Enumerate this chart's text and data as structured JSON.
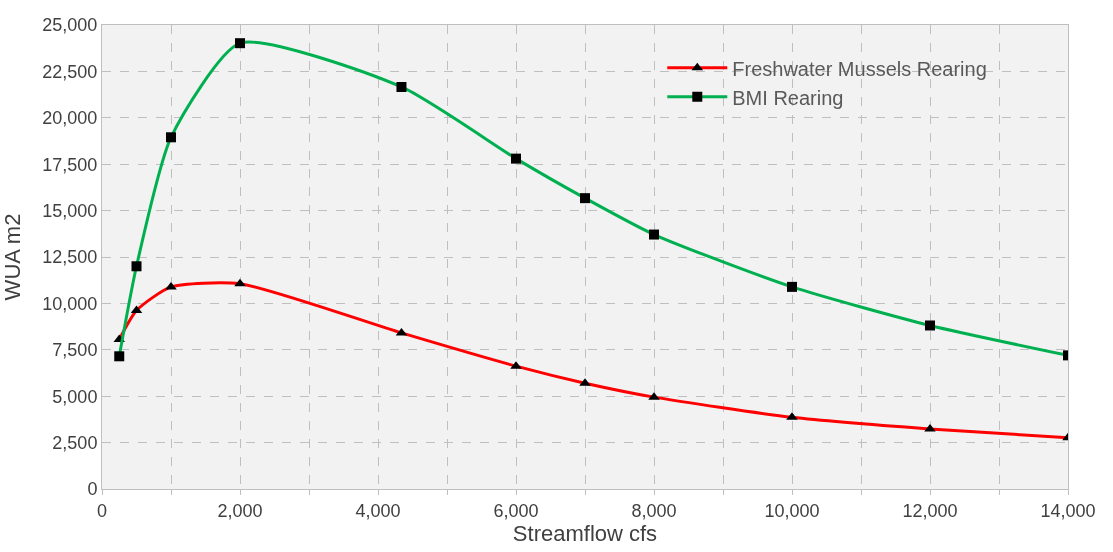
{
  "chart_data": {
    "type": "line",
    "xlabel": "Streamflow cfs",
    "ylabel": "WUA m2",
    "x": [
      250,
      500,
      1000,
      2000,
      4340,
      6000,
      7000,
      8000,
      10000,
      12000,
      14000
    ],
    "series": [
      {
        "name": "Freshwater Mussels Rearing",
        "color": "#ff0000",
        "marker": "triangle",
        "values": [
          8060,
          9620,
          10890,
          11060,
          8410,
          6620,
          5700,
          4950,
          3860,
          3230,
          2760
        ]
      },
      {
        "name": "BMI Rearing",
        "color": "#00b050",
        "marker": "square",
        "values": [
          7150,
          12000,
          18950,
          24020,
          21660,
          17800,
          15670,
          13710,
          10890,
          8810,
          7200
        ]
      }
    ],
    "xlim": [
      0,
      14000
    ],
    "xticks": [
      0,
      {
        "value": 1000,
        "label": null
      },
      {
        "value": 2000,
        "label": "2,000"
      },
      {
        "value": 3000,
        "label": null
      },
      {
        "value": 4000,
        "label": "4,000"
      },
      {
        "value": 5000,
        "label": null
      },
      {
        "value": 6000,
        "label": "6,000"
      },
      {
        "value": 7000,
        "label": null
      },
      {
        "value": 8000,
        "label": "8,000"
      },
      {
        "value": 9000,
        "label": null
      },
      {
        "value": 10000,
        "label": "10,000"
      },
      {
        "value": 11000,
        "label": null
      },
      {
        "value": 12000,
        "label": "12,000"
      },
      {
        "value": 13000,
        "label": null
      },
      {
        "value": 14000,
        "label": "14,000"
      }
    ],
    "ylim": [
      0,
      25000
    ],
    "yticks": [
      0,
      {
        "value": 2500,
        "label": "2,500"
      },
      {
        "value": 5000,
        "label": "5,000"
      },
      {
        "value": 7500,
        "label": "7,500"
      },
      {
        "value": 10000,
        "label": "10,000"
      },
      {
        "value": 12500,
        "label": "12,500"
      },
      {
        "value": 15000,
        "label": "15,000"
      },
      {
        "value": 17500,
        "label": "17,500"
      },
      {
        "value": 20000,
        "label": "20,000"
      },
      {
        "value": 22500,
        "label": "22,500"
      },
      {
        "value": 25000,
        "label": "25,000"
      }
    ],
    "grid": true,
    "legend": "top right",
    "line_style": "solid"
  }
}
